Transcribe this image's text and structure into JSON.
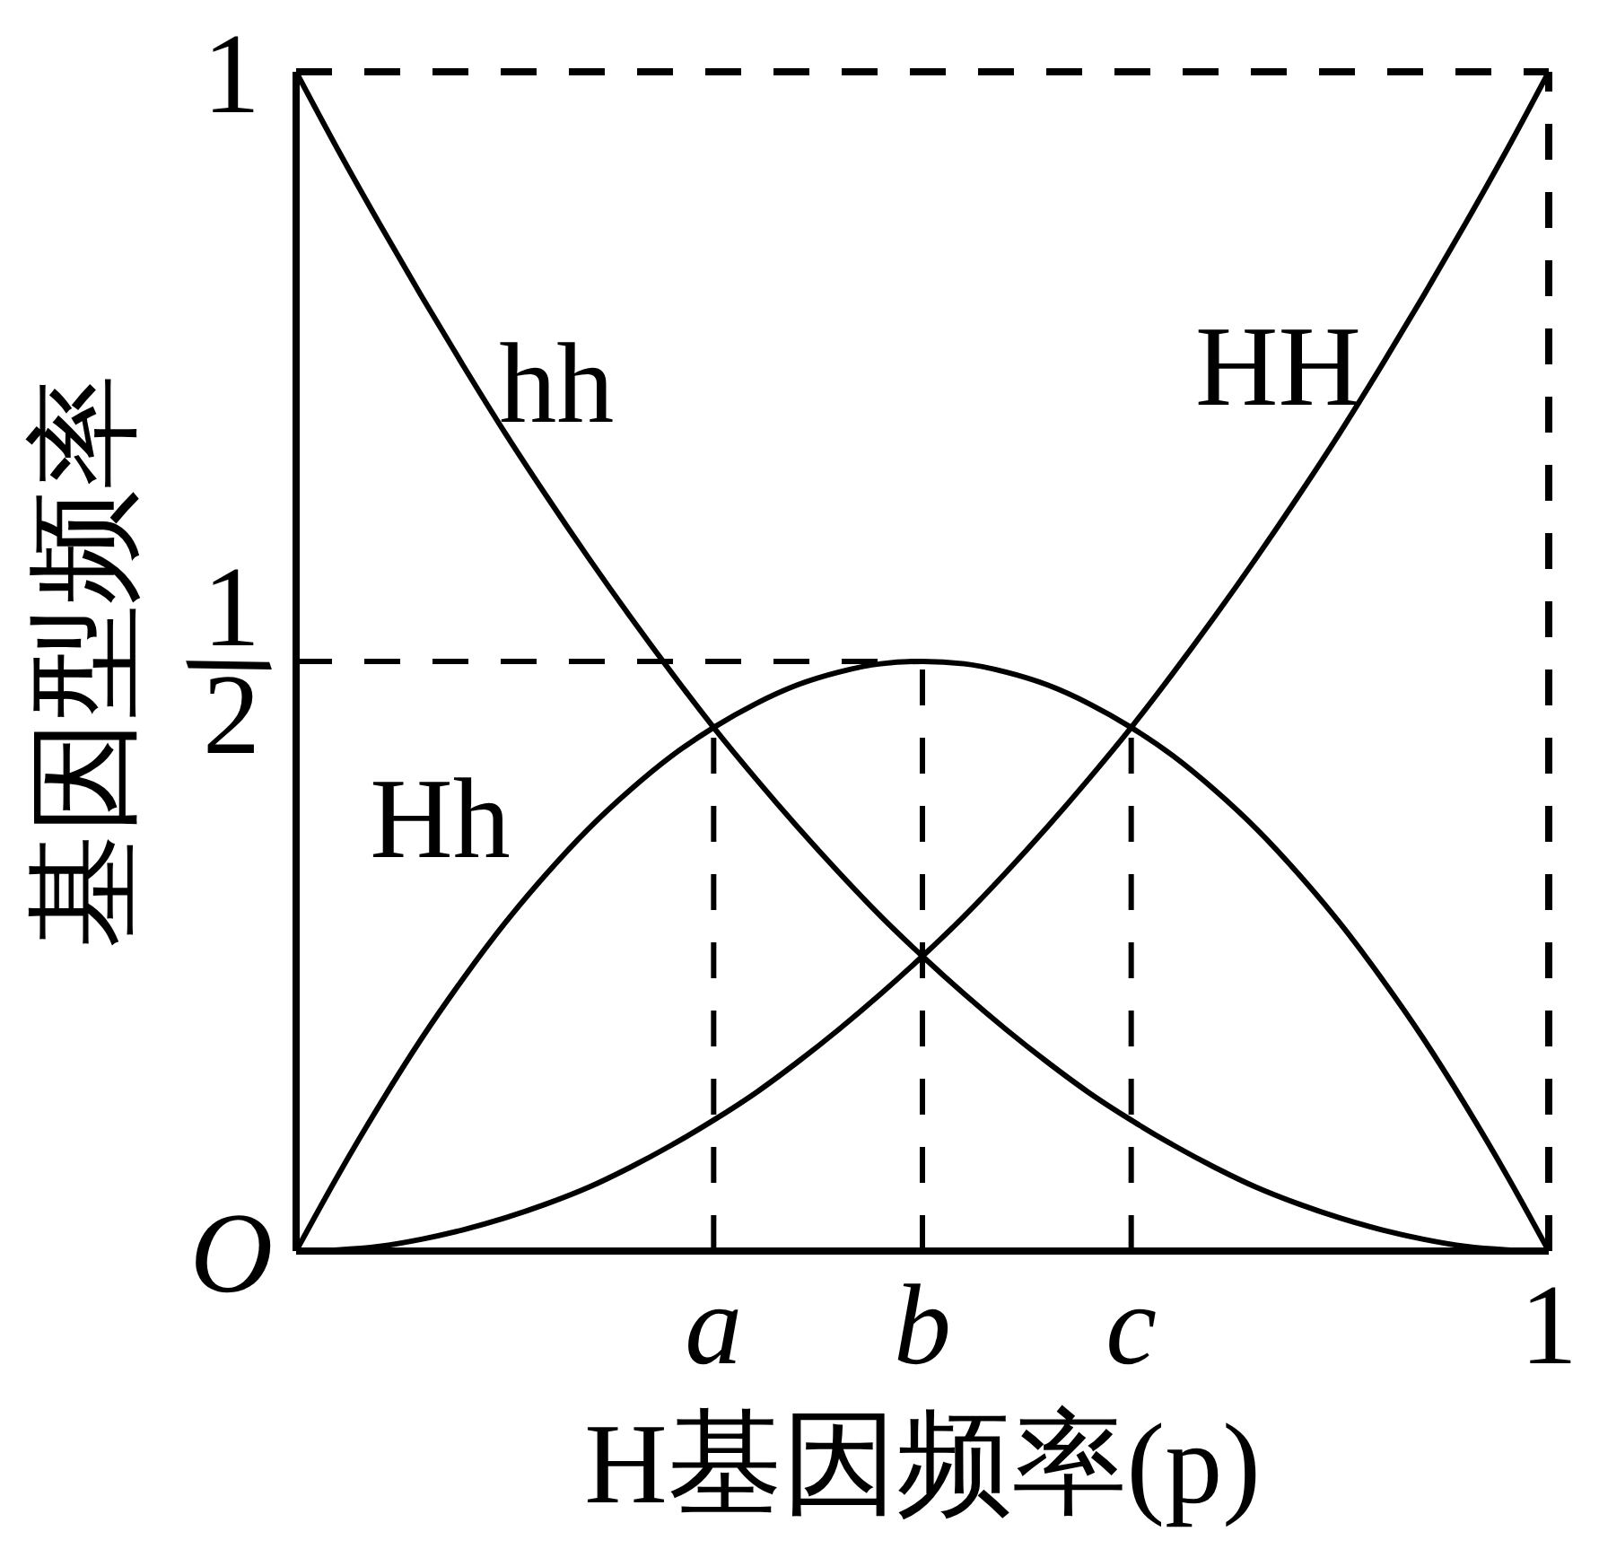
{
  "chart_data": {
    "type": "line",
    "xlabel": "H基因频率(p)",
    "ylabel": "基因型频率",
    "categories": [
      null,
      null,
      null,
      null,
      null,
      null,
      null,
      null,
      null,
      null,
      "a",
      null,
      null,
      null,
      null,
      "b",
      null,
      null,
      null,
      null,
      "c",
      null,
      null,
      null,
      null,
      null,
      null,
      null,
      null,
      null,
      "1"
    ],
    "series": [
      {
        "name": "hh",
        "color": "#000000",
        "values": [
          1,
          0.934,
          0.871,
          0.81,
          0.751,
          0.694,
          0.64,
          0.588,
          0.538,
          0.49,
          0.444,
          0.401,
          0.36,
          0.321,
          0.284,
          0.25,
          0.218,
          0.188,
          0.16,
          0.134,
          0.111,
          0.09,
          0.071,
          0.054,
          0.04,
          0.028,
          0.018,
          0.01,
          0.004,
          0.001,
          0
        ]
      },
      {
        "name": "Hh",
        "color": "#000000",
        "values": [
          0,
          0.064,
          0.124,
          0.18,
          0.231,
          0.278,
          0.32,
          0.358,
          0.391,
          0.42,
          0.444,
          0.464,
          0.48,
          0.491,
          0.498,
          0.5,
          0.498,
          0.491,
          0.48,
          0.464,
          0.444,
          0.42,
          0.391,
          0.358,
          0.32,
          0.278,
          0.231,
          0.18,
          0.124,
          0.064,
          0
        ]
      },
      {
        "name": "HH",
        "color": "#000000",
        "values": [
          0,
          0.001,
          0.004,
          0.01,
          0.018,
          0.028,
          0.04,
          0.054,
          0.071,
          0.09,
          0.111,
          0.134,
          0.16,
          0.188,
          0.218,
          0.25,
          0.284,
          0.321,
          0.36,
          0.401,
          0.444,
          0.49,
          0.538,
          0.588,
          0.64,
          0.694,
          0.751,
          0.81,
          0.871,
          0.934,
          1
        ]
      },
      {
        "color": "#000000",
        "line_style": "dashed",
        "values": [
          0.5,
          0.5,
          0.5,
          0.5,
          0.5,
          0.5,
          0.5,
          0.5,
          0.5,
          0.5,
          0.5,
          0.5,
          0.5,
          0.5,
          0.5,
          0.5,
          null,
          null,
          null,
          null,
          null,
          null,
          null,
          null,
          null,
          null,
          null,
          null,
          null,
          null,
          null
        ]
      },
      {
        "color": "#000000",
        "line_style": "dashed",
        "x": [
          "b",
          "b"
        ],
        "values": [
          0,
          0.5
        ]
      },
      {
        "color": "#000000",
        "line_style": "dashed",
        "x": [
          "a",
          "a"
        ],
        "values": [
          0,
          0.444
        ]
      },
      {
        "color": "#000000",
        "line_style": "dashed",
        "x": [
          "c",
          "c"
        ],
        "values": [
          0,
          0.444
        ]
      }
    ],
    "ylim": [
      0,
      1
    ],
    "yticks": [
      {
        "value": 0,
        "label": "O"
      },
      {
        "value": 0.5,
        "label": "1/2"
      },
      1
    ],
    "ref_lines": [
      {
        "axis": "y",
        "value": 1,
        "color": "#000000",
        "line_style": "dashed"
      },
      {
        "axis": "x",
        "value": "1",
        "color": "#000000",
        "line_style": "dashed"
      }
    ]
  }
}
